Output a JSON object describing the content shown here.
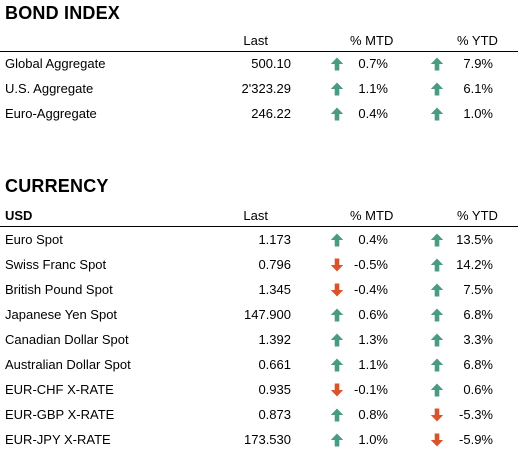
{
  "bond_index": {
    "title": "BOND INDEX",
    "header": {
      "name": "",
      "last": "Last",
      "mtd": "% MTD",
      "ytd": "% YTD"
    },
    "rows": [
      {
        "name": "Global Aggregate",
        "last": "500.10",
        "mtd": "0.7%",
        "mtd_dir": "up",
        "ytd": "7.9%",
        "ytd_dir": "up"
      },
      {
        "name": "U.S. Aggregate",
        "last": "2'323.29",
        "mtd": "1.1%",
        "mtd_dir": "up",
        "ytd": "6.1%",
        "ytd_dir": "up"
      },
      {
        "name": "Euro-Aggregate",
        "last": "246.22",
        "mtd": "0.4%",
        "mtd_dir": "up",
        "ytd": "1.0%",
        "ytd_dir": "up"
      }
    ]
  },
  "currency": {
    "title": "CURRENCY",
    "header": {
      "name": "USD",
      "last": "Last",
      "mtd": "% MTD",
      "ytd": "% YTD"
    },
    "rows": [
      {
        "name": "Euro Spot",
        "last": "1.173",
        "mtd": "0.4%",
        "mtd_dir": "up",
        "ytd": "13.5%",
        "ytd_dir": "up"
      },
      {
        "name": "Swiss Franc Spot",
        "last": "0.796",
        "mtd": "-0.5%",
        "mtd_dir": "down",
        "ytd": "14.2%",
        "ytd_dir": "up"
      },
      {
        "name": "British Pound Spot",
        "last": "1.345",
        "mtd": "-0.4%",
        "mtd_dir": "down",
        "ytd": "7.5%",
        "ytd_dir": "up"
      },
      {
        "name": "Japanese Yen Spot",
        "last": "147.900",
        "mtd": "0.6%",
        "mtd_dir": "up",
        "ytd": "6.8%",
        "ytd_dir": "up"
      },
      {
        "name": "Canadian Dollar Spot",
        "last": "1.392",
        "mtd": "1.3%",
        "mtd_dir": "up",
        "ytd": "3.3%",
        "ytd_dir": "up"
      },
      {
        "name": "Australian Dollar Spot",
        "last": "0.661",
        "mtd": "1.1%",
        "mtd_dir": "up",
        "ytd": "6.8%",
        "ytd_dir": "up"
      },
      {
        "name": "EUR-CHF X-RATE",
        "last": "0.935",
        "mtd": "-0.1%",
        "mtd_dir": "down",
        "ytd": "0.6%",
        "ytd_dir": "up"
      },
      {
        "name": "EUR-GBP X-RATE",
        "last": "0.873",
        "mtd": "0.8%",
        "mtd_dir": "up",
        "ytd": "-5.3%",
        "ytd_dir": "down"
      },
      {
        "name": "EUR-JPY X-RATE",
        "last": "173.530",
        "mtd": "1.0%",
        "mtd_dir": "up",
        "ytd": "-5.9%",
        "ytd_dir": "down"
      }
    ]
  },
  "colors": {
    "up": "#4a9a84",
    "down": "#d9542a",
    "text": "#000000",
    "rule": "#000000"
  },
  "icons": {
    "up": "arrow-up-icon",
    "down": "arrow-down-icon"
  }
}
